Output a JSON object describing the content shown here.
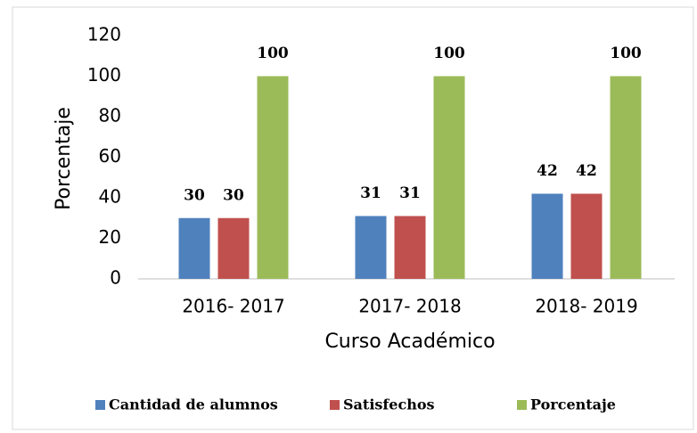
{
  "chart_data": {
    "type": "bar",
    "y_label": "Porcentaje",
    "x_label": "Curso Académico",
    "categories": [
      "2016- 2017",
      "2017- 2018",
      "2018- 2019"
    ],
    "series": [
      {
        "name": "Cantidad de alumnos",
        "color": "#4f81bd",
        "values": [
          30,
          31,
          42
        ]
      },
      {
        "name": "Satisfechos",
        "color": "#c0504d",
        "values": [
          30,
          31,
          42
        ]
      },
      {
        "name": "Porcentaje",
        "color": "#9bbb59",
        "values": [
          100,
          100,
          100
        ]
      }
    ],
    "ylim": [
      0,
      120
    ],
    "yticks": [
      0,
      20,
      40,
      60,
      80,
      100,
      120
    ],
    "grid": false,
    "legend": "bottom"
  }
}
